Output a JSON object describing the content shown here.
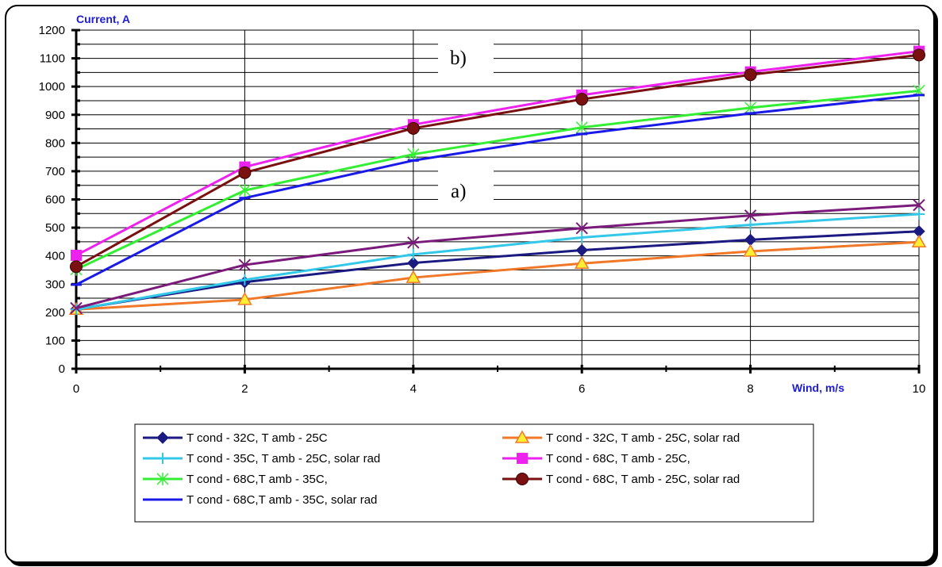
{
  "chart_data": {
    "type": "line",
    "title": "",
    "ylabel": "Current, A",
    "xlabel": "Wind, m/s",
    "xlim": [
      0,
      10
    ],
    "ylim": [
      0,
      1200
    ],
    "x_ticks": [
      0,
      2,
      4,
      6,
      8,
      10
    ],
    "y_ticks": [
      0,
      100,
      200,
      300,
      400,
      500,
      600,
      700,
      800,
      900,
      1000,
      1100,
      1200
    ],
    "grid": true,
    "legend_position": "bottom",
    "x": [
      0,
      2,
      4,
      6,
      8,
      10
    ],
    "series": [
      {
        "name": "T cond - 32C, T amb - 25C",
        "color": "#1a1a80",
        "marker": "diamond",
        "values": [
          211,
          307,
          375,
          420,
          457,
          487
        ]
      },
      {
        "name": "T cond - 32C, T amb - 25C, solar rad",
        "color": "#f07828",
        "marker": "triangle",
        "values": [
          210,
          245,
          323,
          373,
          416,
          449
        ]
      },
      {
        "name": "T cond - 35C, T amb - 25C, solar rad",
        "color": "#33c8e8",
        "marker": "plus",
        "values": [
          210,
          315,
          405,
          465,
          510,
          548
        ]
      },
      {
        "name": "T cond - 68C, T amb  - 25C,",
        "color": "#ee22ee",
        "marker": "square",
        "values": [
          402,
          715,
          865,
          970,
          1052,
          1125
        ]
      },
      {
        "name": "T cond - 68C,T amb - 35C,",
        "color": "#33ee33",
        "marker": "asterisk",
        "values": [
          352,
          632,
          760,
          855,
          925,
          985
        ]
      },
      {
        "name": "T cond - 68C, T amb - 25C, solar rad",
        "color": "#7a1010",
        "marker": "circle",
        "values": [
          362,
          695,
          852,
          955,
          1042,
          1112
        ]
      },
      {
        "name": "T cond - 68C,T amb - 35C, solar rad",
        "color": "#1a1ae8",
        "marker": "dash",
        "values": [
          298,
          605,
          738,
          832,
          905,
          970
        ]
      },
      {
        "name": "",
        "color": "#7a1a7a",
        "marker": "x",
        "values": [
          215,
          368,
          447,
          498,
          543,
          580
        ]
      }
    ],
    "annotations": [
      "b)",
      "a)"
    ]
  }
}
